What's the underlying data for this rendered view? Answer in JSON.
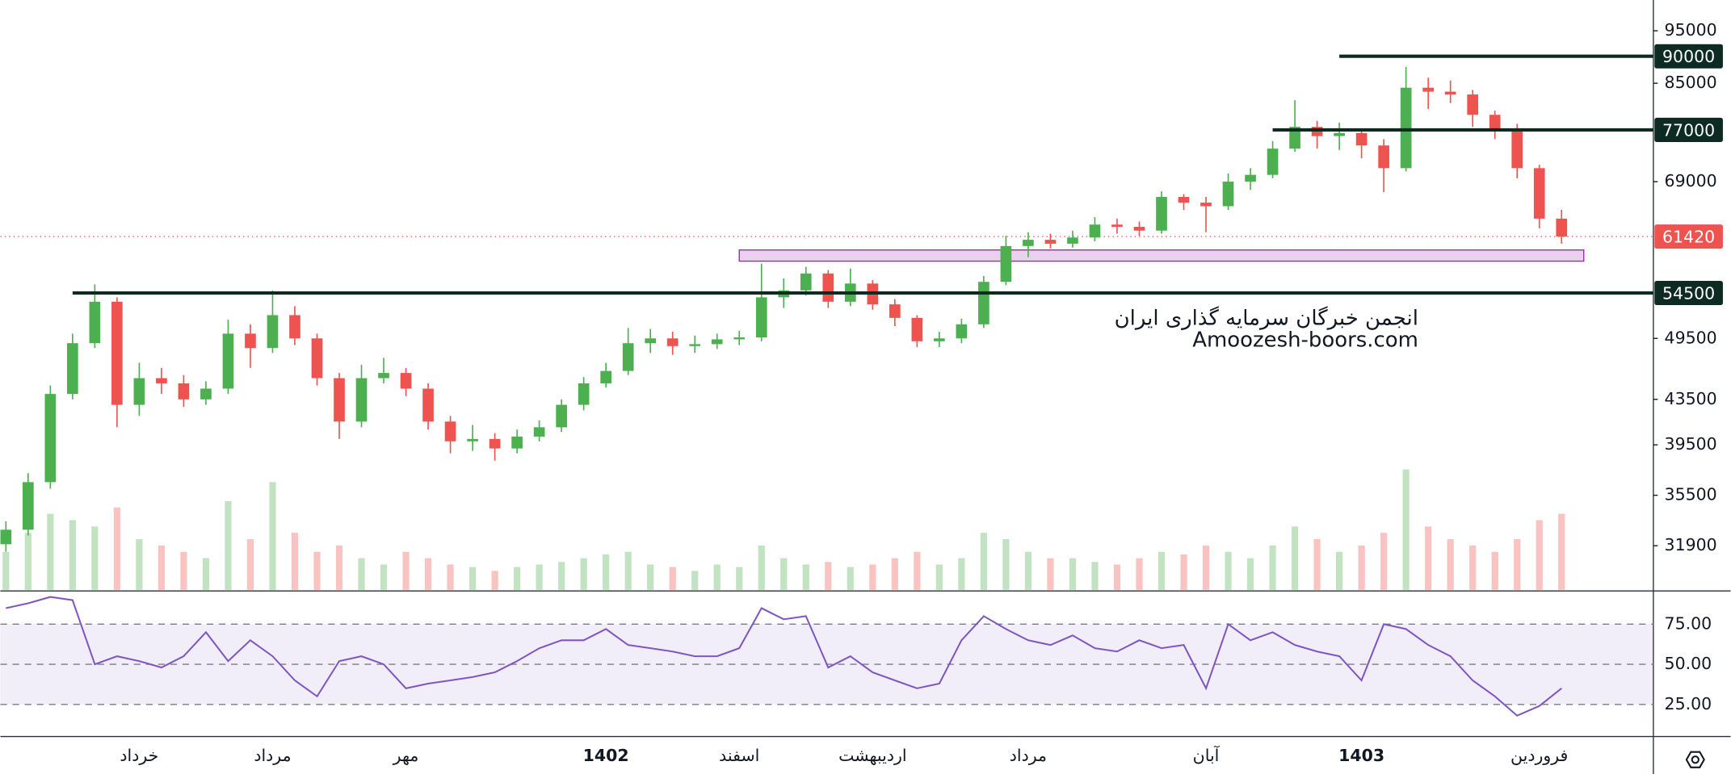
{
  "chart_data": {
    "type": "candlestick",
    "log_scale": true,
    "up_color": "#4caf50",
    "down_color": "#ef5350",
    "categories": [
      null,
      null,
      null,
      null,
      null,
      null,
      "خرداد",
      null,
      null,
      null,
      null,
      null,
      "مرداد",
      null,
      null,
      null,
      null,
      null,
      "مهر",
      null,
      null,
      null,
      null,
      null,
      null,
      null,
      null,
      "1402",
      null,
      null,
      null,
      null,
      null,
      "اسفند",
      null,
      null,
      null,
      null,
      null,
      "اردیبهشت",
      null,
      null,
      null,
      null,
      null,
      null,
      "مرداد",
      null,
      null,
      null,
      null,
      null,
      null,
      null,
      "آبان",
      null,
      null,
      null,
      null,
      null,
      null,
      "1403",
      null,
      null,
      null,
      null,
      null,
      null,
      null,
      "فروردین",
      null
    ],
    "open": [
      32000,
      33000,
      36500,
      44000,
      49000,
      53500,
      43000,
      45500,
      45000,
      43500,
      44500,
      50000,
      48500,
      52000,
      49500,
      45500,
      41500,
      45500,
      46000,
      44500,
      41500,
      39800,
      40000,
      39200,
      40200,
      41000,
      43000,
      45000,
      46200,
      49000,
      49500,
      48700,
      48900,
      49400,
      49600,
      54000,
      54800,
      56800,
      53500,
      55600,
      53200,
      51700,
      49200,
      49500,
      51000,
      55800,
      60200,
      61000,
      60500,
      61300,
      63000,
      62700,
      62200,
      66800,
      66000,
      65500,
      69000,
      70000,
      74000,
      77500,
      76000,
      76500,
      74500,
      71000,
      84200,
      83500,
      83000,
      79500,
      76800,
      71000,
      63800
    ],
    "high": [
      33600,
      37200,
      44800,
      50000,
      55500,
      54000,
      47000,
      46500,
      45800,
      45200,
      51500,
      51000,
      54800,
      53000,
      50000,
      46000,
      46800,
      47500,
      46500,
      45000,
      42000,
      41200,
      40500,
      40800,
      41600,
      43500,
      45600,
      47000,
      50600,
      50500,
      50200,
      49800,
      50000,
      50300,
      58000,
      56200,
      57600,
      57200,
      57400,
      56000,
      53800,
      52000,
      50200,
      51600,
      56500,
      61500,
      62000,
      61800,
      62200,
      64000,
      63800,
      63400,
      67600,
      67200,
      66800,
      70200,
      71000,
      75200,
      82000,
      78500,
      78200,
      77000,
      75500,
      88000,
      86000,
      85500,
      83800,
      80200,
      78000,
      71500,
      65000
    ],
    "low": [
      31500,
      32600,
      36000,
      43500,
      48500,
      41000,
      42000,
      44000,
      42800,
      43000,
      44000,
      46500,
      48000,
      48800,
      44800,
      40000,
      41000,
      45000,
      43800,
      40800,
      38800,
      39000,
      38200,
      38800,
      39800,
      40600,
      42500,
      44600,
      45800,
      48000,
      47800,
      48000,
      48400,
      48800,
      49200,
      52800,
      54200,
      52800,
      53000,
      52600,
      50800,
      48600,
      48600,
      49000,
      50600,
      55400,
      58800,
      59900,
      60000,
      60800,
      61800,
      61500,
      61800,
      65000,
      62000,
      65000,
      67800,
      69500,
      73500,
      74000,
      73800,
      72500,
      67500,
      70500,
      80500,
      81500,
      77500,
      75500,
      69500,
      62500,
      60500
    ],
    "close": [
      33000,
      36500,
      44000,
      49000,
      53500,
      43000,
      45500,
      45000,
      43500,
      44500,
      50000,
      48500,
      52000,
      49500,
      45500,
      41500,
      45500,
      46000,
      44500,
      41500,
      39800,
      40000,
      39200,
      40200,
      41000,
      43000,
      45000,
      46200,
      49000,
      49500,
      48700,
      48900,
      49400,
      49600,
      54000,
      54800,
      56800,
      53500,
      55600,
      53200,
      51700,
      49200,
      49500,
      51000,
      55800,
      60200,
      61000,
      60500,
      61300,
      63000,
      62700,
      62200,
      66800,
      66000,
      65500,
      69000,
      70000,
      74000,
      77500,
      76000,
      76500,
      74500,
      71000,
      84200,
      83500,
      83000,
      79500,
      76800,
      71000,
      63800,
      61420
    ],
    "ylim": [
      29050,
      101400
    ],
    "yticks": [
      31900,
      35500,
      39500,
      43500,
      49500,
      69000,
      85000,
      95000
    ],
    "levels": [
      {
        "value": 90000,
        "from": 60
      },
      {
        "value": 77000,
        "from": 57
      },
      {
        "value": 54500,
        "from": 3
      }
    ],
    "zone": {
      "low": 58300,
      "high": 59700,
      "from": 33,
      "to": 71
    },
    "watermark": [
      "انجمن خبرگان سرمایه گذاری ایران",
      "Amoozesh-boors.com"
    ],
    "volume": {
      "ylim": [
        0,
        100
      ],
      "values": [
        30,
        45,
        60,
        55,
        50,
        65,
        40,
        35,
        30,
        25,
        70,
        40,
        85,
        45,
        30,
        35,
        25,
        20,
        30,
        25,
        20,
        18,
        15,
        18,
        20,
        22,
        25,
        28,
        30,
        20,
        18,
        15,
        20,
        18,
        35,
        25,
        20,
        22,
        18,
        20,
        25,
        30,
        20,
        25,
        45,
        40,
        30,
        25,
        25,
        22,
        20,
        25,
        30,
        28,
        35,
        30,
        25,
        35,
        50,
        40,
        30,
        35,
        45,
        95,
        50,
        40,
        35,
        30,
        40,
        55,
        60
      ]
    },
    "rsi": {
      "color": "#7e57c2",
      "ylim": [
        5,
        95
      ],
      "yticks": [
        {
          "value": 75,
          "label": "75.00"
        },
        {
          "value": 50,
          "label": "50.00"
        },
        {
          "value": 25,
          "label": "25.00"
        }
      ],
      "values": [
        85,
        88,
        92,
        90,
        50,
        55,
        52,
        48,
        55,
        70,
        52,
        65,
        55,
        40,
        30,
        52,
        55,
        50,
        35,
        38,
        40,
        42,
        45,
        52,
        60,
        65,
        65,
        72,
        62,
        60,
        58,
        55,
        55,
        60,
        85,
        78,
        80,
        48,
        55,
        45,
        40,
        35,
        38,
        65,
        80,
        72,
        65,
        62,
        68,
        60,
        58,
        65,
        60,
        62,
        35,
        75,
        65,
        70,
        62,
        58,
        55,
        40,
        75,
        72,
        62,
        55,
        40,
        30,
        18,
        24,
        35
      ]
    }
  }
}
